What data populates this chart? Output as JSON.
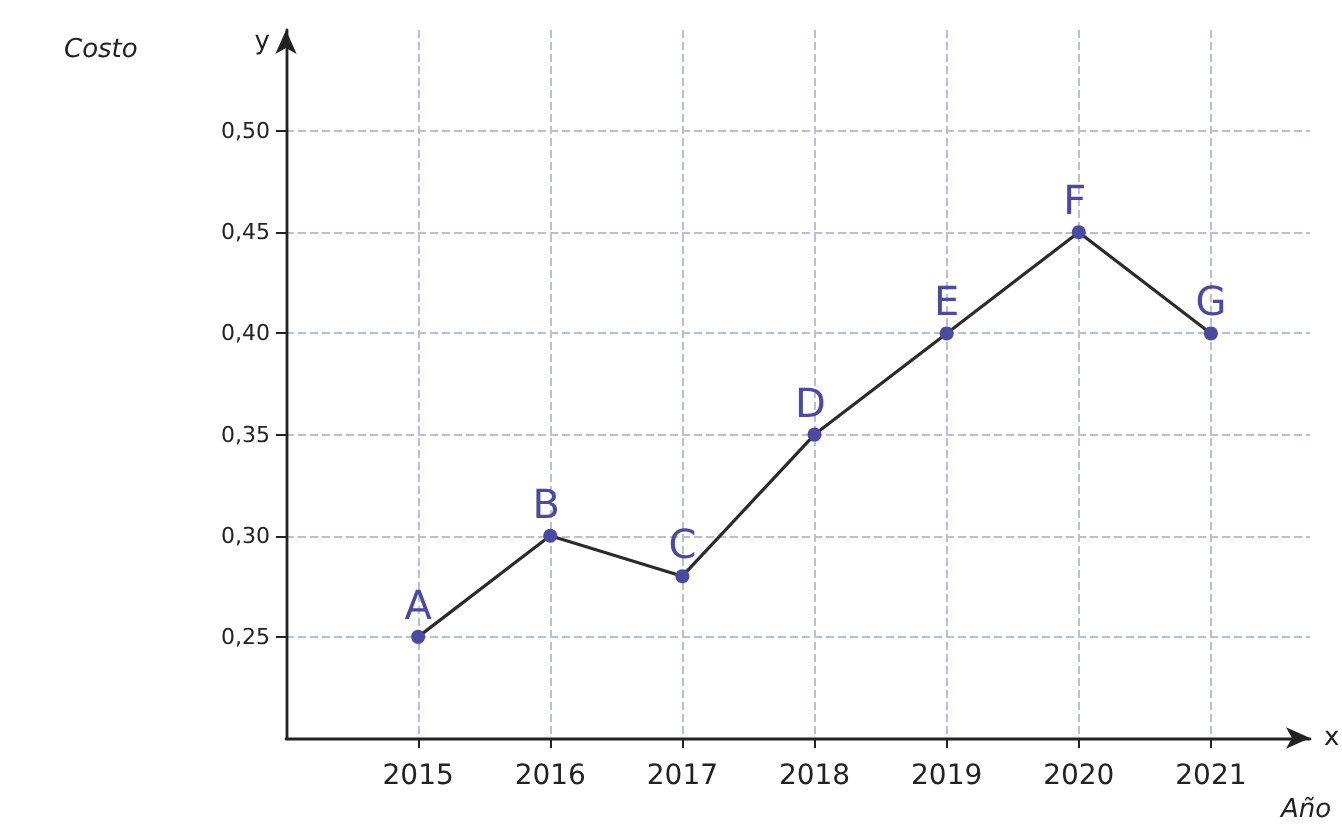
{
  "chart_data": {
    "type": "line",
    "xlabel": "Año",
    "ylabel": "Costo",
    "x": [
      2015,
      2016,
      2017,
      2018,
      2019,
      2020,
      2021
    ],
    "series": [
      {
        "color": "#2b2b2b",
        "values": [
          0.25,
          0.3,
          0.28,
          0.35,
          0.4,
          0.45,
          0.4
        ]
      }
    ],
    "xlim": [
      2014,
      2021.75
    ],
    "xticks": [
      2015,
      2016,
      2017,
      2018,
      2019,
      2020,
      2021
    ],
    "ylim": [
      0.2,
      0.55
    ],
    "yticks": [
      {
        "value": 0.25,
        "label": "0,25"
      },
      {
        "value": 0.3,
        "label": "0,30"
      },
      {
        "value": 0.35,
        "label": "0,35"
      },
      {
        "value": 0.4,
        "label": "0,40"
      },
      {
        "value": 0.45,
        "label": "0,45"
      },
      {
        "value": 0.5,
        "label": "0,50"
      }
    ],
    "grid": true,
    "marker": "circle",
    "line_style": "solid",
    "annotations": [
      {
        "text": "A",
        "x": 2015,
        "y": 0.25
      },
      {
        "text": "B",
        "x": 2016,
        "y": 0.3
      },
      {
        "text": "C",
        "x": 2017,
        "y": 0.28
      },
      {
        "text": "D",
        "x": 2018,
        "y": 0.35
      },
      {
        "text": "E",
        "x": 2019,
        "y": 0.4
      },
      {
        "text": "F",
        "x": 2020,
        "y": 0.45
      },
      {
        "text": "G",
        "x": 2021,
        "y": 0.4
      },
      "y",
      "x"
    ]
  }
}
